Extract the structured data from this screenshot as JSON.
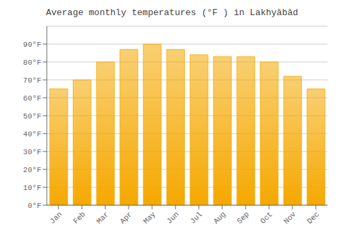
{
  "chart_data": {
    "type": "bar",
    "title": "Average monthly temperatures (°F ) in Lakhyābād",
    "categories": [
      "Jan",
      "Feb",
      "Mar",
      "Apr",
      "May",
      "Jun",
      "Jul",
      "Aug",
      "Sep",
      "Oct",
      "Nov",
      "Dec"
    ],
    "values": [
      65,
      70,
      80,
      87,
      90,
      87,
      84,
      83,
      83,
      80,
      72,
      65
    ],
    "color": "#F5A800",
    "ylim": [
      0,
      100
    ],
    "yticks": [
      {
        "value": 0,
        "label": "0°F"
      },
      {
        "value": 10,
        "label": "10°F"
      },
      {
        "value": 20,
        "label": "20°F"
      },
      {
        "value": 30,
        "label": "30°F"
      },
      {
        "value": 40,
        "label": "40°F"
      },
      {
        "value": 50,
        "label": "50°F"
      },
      {
        "value": 60,
        "label": "60°F"
      },
      {
        "value": 70,
        "label": "70°F"
      },
      {
        "value": 80,
        "label": "80°F"
      },
      {
        "value": 90,
        "label": "90°F"
      }
    ],
    "grid": true
  }
}
